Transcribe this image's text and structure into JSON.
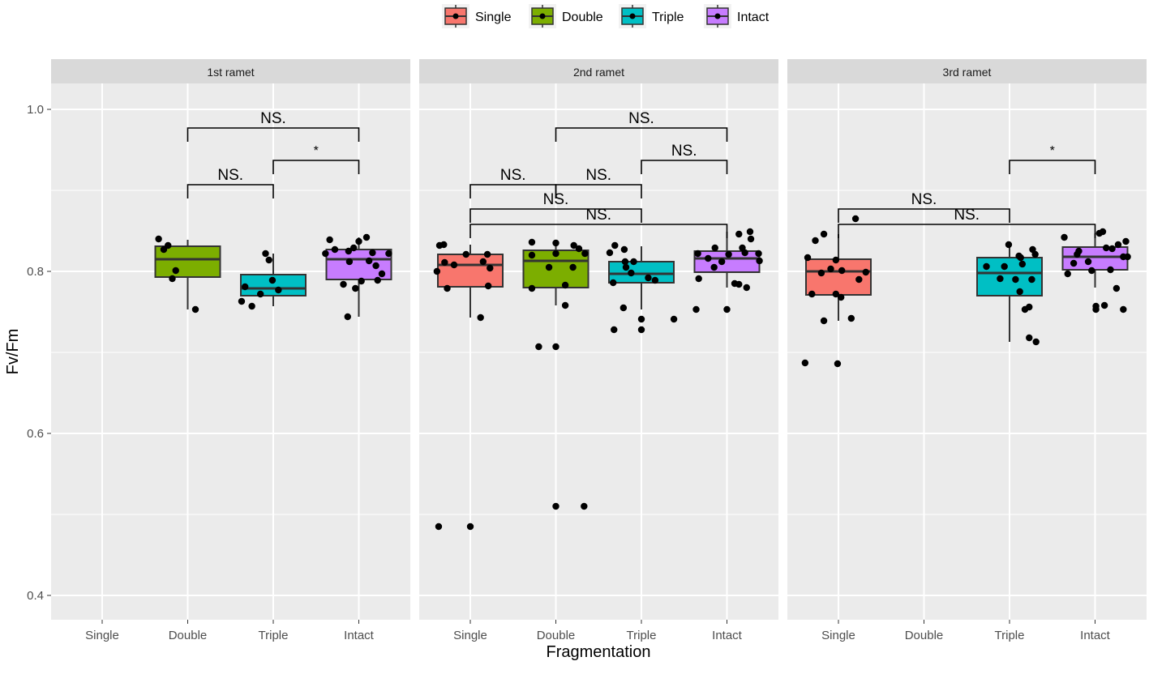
{
  "chart_data": {
    "type": "box",
    "xlabel": "Fragmentation",
    "ylabel": "Fv/Fm",
    "ylim": [
      0.37,
      1.032
    ],
    "yticks": [
      0.4,
      0.6,
      0.8,
      1.0
    ],
    "ytick_labels": [
      "0.4",
      "0.6",
      "0.8",
      "1.0"
    ],
    "grid": true,
    "legend_position": "top-center",
    "categories": [
      "Single",
      "Double",
      "Triple",
      "Intact"
    ],
    "colors": {
      "Single": "#F8766D",
      "Double": "#7CAE00",
      "Triple": "#00BFC4",
      "Intact": "#C77CFF"
    },
    "legend": [
      "Single",
      "Double",
      "Triple",
      "Intact"
    ],
    "panels": [
      {
        "title": "1st ramet",
        "boxes": [
          {
            "group": "Double",
            "q1": 0.793,
            "median": 0.815,
            "q3": 0.831,
            "whisker_low": 0.753,
            "whisker_high": 0.839,
            "points": [
              [
                -0.34,
                0.84
              ],
              [
                -0.28,
                0.827
              ],
              [
                -0.23,
                0.832
              ],
              [
                -0.14,
                0.801
              ],
              [
                -0.18,
                0.791
              ],
              [
                0.09,
                0.753
              ]
            ]
          },
          {
            "group": "Triple",
            "q1": 0.77,
            "median": 0.779,
            "q3": 0.796,
            "whisker_low": 0.757,
            "whisker_high": 0.822,
            "points": [
              [
                -0.09,
                0.822
              ],
              [
                -0.05,
                0.814
              ],
              [
                -0.33,
                0.781
              ],
              [
                -0.01,
                0.789
              ],
              [
                0.06,
                0.777
              ],
              [
                -0.15,
                0.772
              ],
              [
                -0.37,
                0.763
              ],
              [
                -0.25,
                0.757
              ]
            ]
          },
          {
            "group": "Intact",
            "q1": 0.79,
            "median": 0.815,
            "q3": 0.827,
            "whisker_low": 0.744,
            "whisker_high": 0.842,
            "points": [
              [
                -0.34,
                0.839
              ],
              [
                -0.28,
                0.827
              ],
              [
                -0.39,
                0.822
              ],
              [
                -0.12,
                0.825
              ],
              [
                -0.06,
                0.829
              ],
              [
                0,
                0.837
              ],
              [
                0.09,
                0.842
              ],
              [
                0.16,
                0.823
              ],
              [
                0.35,
                0.822
              ],
              [
                -0.11,
                0.812
              ],
              [
                0.12,
                0.813
              ],
              [
                0.2,
                0.807
              ],
              [
                0.27,
                0.797
              ],
              [
                0.03,
                0.788
              ],
              [
                0.22,
                0.789
              ],
              [
                -0.18,
                0.784
              ],
              [
                -0.04,
                0.779
              ],
              [
                -0.13,
                0.744
              ]
            ]
          }
        ],
        "comparisons": [
          {
            "from": "Double",
            "to": "Intact",
            "y": 0.977,
            "label": "NS."
          },
          {
            "from": "Triple",
            "to": "Intact",
            "y": 0.937,
            "label": "*"
          },
          {
            "from": "Double",
            "to": "Triple",
            "y": 0.907,
            "label": "NS."
          }
        ]
      },
      {
        "title": "2nd ramet",
        "boxes": [
          {
            "group": "Single",
            "q1": 0.781,
            "median": 0.808,
            "q3": 0.821,
            "whisker_low": 0.743,
            "whisker_high": 0.833,
            "points": [
              [
                -0.36,
                0.832
              ],
              [
                -0.31,
                0.833
              ],
              [
                -0.39,
                0.8
              ],
              [
                -0.3,
                0.811
              ],
              [
                -0.19,
                0.808
              ],
              [
                -0.05,
                0.821
              ],
              [
                0.2,
                0.821
              ],
              [
                0.15,
                0.812
              ],
              [
                0.23,
                0.804
              ],
              [
                -0.27,
                0.779
              ],
              [
                0.21,
                0.782
              ],
              [
                0.12,
                0.743
              ],
              [
                -0.37,
                0.485
              ],
              [
                0,
                0.485
              ]
            ]
          },
          {
            "group": "Double",
            "q1": 0.78,
            "median": 0.813,
            "q3": 0.826,
            "whisker_low": 0.758,
            "whisker_high": 0.836,
            "points": [
              [
                -0.28,
                0.836
              ],
              [
                0,
                0.835
              ],
              [
                0.21,
                0.832
              ],
              [
                0.27,
                0.828
              ],
              [
                0.34,
                0.822
              ],
              [
                -0.28,
                0.82
              ],
              [
                0,
                0.822
              ],
              [
                -0.08,
                0.805
              ],
              [
                0.2,
                0.805
              ],
              [
                -0.28,
                0.779
              ],
              [
                0.11,
                0.783
              ],
              [
                0.11,
                0.758
              ],
              [
                -0.2,
                0.707
              ],
              [
                0,
                0.707
              ],
              [
                0,
                0.51
              ],
              [
                0.33,
                0.51
              ]
            ]
          },
          {
            "group": "Triple",
            "q1": 0.786,
            "median": 0.797,
            "q3": 0.812,
            "whisker_low": 0.753,
            "whisker_high": 0.831,
            "points": [
              [
                -0.31,
                0.832
              ],
              [
                -0.2,
                0.827
              ],
              [
                -0.37,
                0.823
              ],
              [
                -0.19,
                0.812
              ],
              [
                -0.09,
                0.812
              ],
              [
                -0.18,
                0.805
              ],
              [
                -0.12,
                0.798
              ],
              [
                0.08,
                0.792
              ],
              [
                0.16,
                0.789
              ],
              [
                -0.33,
                0.786
              ],
              [
                -0.21,
                0.755
              ],
              [
                0,
                0.741
              ],
              [
                0.38,
                0.741
              ],
              [
                -0.32,
                0.728
              ],
              [
                0,
                0.728
              ]
            ]
          },
          {
            "group": "Intact",
            "q1": 0.799,
            "median": 0.816,
            "q3": 0.825,
            "whisker_low": 0.78,
            "whisker_high": 0.849,
            "points": [
              [
                0.14,
                0.846
              ],
              [
                0.27,
                0.849
              ],
              [
                0.28,
                0.84
              ],
              [
                -0.14,
                0.829
              ],
              [
                -0.34,
                0.822
              ],
              [
                0.02,
                0.821
              ],
              [
                0.18,
                0.829
              ],
              [
                0.21,
                0.823
              ],
              [
                0.37,
                0.822
              ],
              [
                0.38,
                0.813
              ],
              [
                -0.22,
                0.816
              ],
              [
                -0.06,
                0.812
              ],
              [
                -0.15,
                0.805
              ],
              [
                -0.33,
                0.791
              ],
              [
                0.09,
                0.785
              ],
              [
                0.14,
                0.784
              ],
              [
                0.23,
                0.78
              ],
              [
                -0.36,
                0.753
              ],
              [
                0,
                0.753
              ]
            ]
          }
        ],
        "comparisons": [
          {
            "from": "Double",
            "to": "Intact",
            "y": 0.977,
            "label": "NS."
          },
          {
            "from": "Triple",
            "to": "Intact",
            "y": 0.937,
            "label": "NS."
          },
          {
            "from": "Single",
            "to": "Double",
            "y": 0.907,
            "label": "NS."
          },
          {
            "from": "Double",
            "to": "Triple",
            "y": 0.907,
            "label": "NS."
          },
          {
            "from": "Single",
            "to": "Triple",
            "y": 0.877,
            "label": "NS."
          },
          {
            "from": "Single",
            "to": "Intact",
            "y": 0.858,
            "label": "NS."
          }
        ]
      },
      {
        "title": "3rd ramet",
        "boxes": [
          {
            "group": "Single",
            "q1": 0.771,
            "median": 0.8,
            "q3": 0.815,
            "whisker_low": 0.739,
            "whisker_high": 0.846,
            "points": [
              [
                0.2,
                0.865
              ],
              [
                -0.17,
                0.846
              ],
              [
                -0.27,
                0.838
              ],
              [
                -0.36,
                0.817
              ],
              [
                -0.03,
                0.814
              ],
              [
                -0.09,
                0.803
              ],
              [
                0.04,
                0.801
              ],
              [
                -0.2,
                0.798
              ],
              [
                0.32,
                0.799
              ],
              [
                0.24,
                0.79
              ],
              [
                -0.31,
                0.772
              ],
              [
                -0.03,
                0.772
              ],
              [
                0.03,
                0.768
              ],
              [
                -0.17,
                0.739
              ],
              [
                0.15,
                0.742
              ],
              [
                -0.39,
                0.687
              ],
              [
                -0.01,
                0.686
              ]
            ]
          },
          {
            "group": "Triple",
            "q1": 0.77,
            "median": 0.798,
            "q3": 0.817,
            "whisker_low": 0.713,
            "whisker_high": 0.833,
            "points": [
              [
                -0.01,
                0.833
              ],
              [
                0.27,
                0.827
              ],
              [
                0.3,
                0.821
              ],
              [
                0.11,
                0.819
              ],
              [
                0.13,
                0.817
              ],
              [
                -0.27,
                0.806
              ],
              [
                -0.06,
                0.806
              ],
              [
                0.15,
                0.809
              ],
              [
                -0.11,
                0.791
              ],
              [
                0.07,
                0.79
              ],
              [
                0.26,
                0.79
              ],
              [
                0.12,
                0.775
              ],
              [
                0.18,
                0.753
              ],
              [
                0.23,
                0.756
              ],
              [
                0.23,
                0.718
              ],
              [
                0.31,
                0.713
              ]
            ]
          },
          {
            "group": "Intact",
            "q1": 0.802,
            "median": 0.818,
            "q3": 0.83,
            "whisker_low": 0.78,
            "whisker_high": 0.847,
            "points": [
              [
                0.05,
                0.847
              ],
              [
                0.09,
                0.849
              ],
              [
                -0.36,
                0.842
              ],
              [
                0.36,
                0.837
              ],
              [
                0.27,
                0.833
              ],
              [
                0.13,
                0.829
              ],
              [
                0.2,
                0.828
              ],
              [
                -0.19,
                0.825
              ],
              [
                -0.21,
                0.821
              ],
              [
                0.33,
                0.818
              ],
              [
                0.38,
                0.818
              ],
              [
                -0.25,
                0.81
              ],
              [
                -0.08,
                0.812
              ],
              [
                -0.04,
                0.801
              ],
              [
                0.18,
                0.802
              ],
              [
                -0.32,
                0.797
              ],
              [
                0.25,
                0.779
              ],
              [
                0.01,
                0.757
              ],
              [
                0.01,
                0.753
              ],
              [
                0.11,
                0.758
              ],
              [
                0.33,
                0.753
              ]
            ]
          }
        ],
        "comparisons": [
          {
            "from": "Triple",
            "to": "Intact",
            "y": 0.937,
            "label": "*"
          },
          {
            "from": "Single",
            "to": "Triple",
            "y": 0.877,
            "label": "NS."
          },
          {
            "from": "Single",
            "to": "Intact",
            "y": 0.858,
            "label": "NS."
          }
        ]
      }
    ]
  }
}
